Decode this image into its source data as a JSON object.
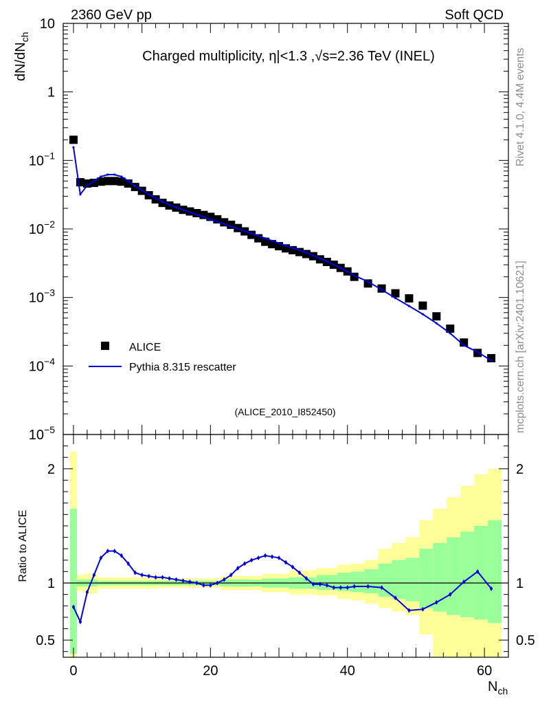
{
  "header": {
    "left": "2360 GeV pp",
    "right": "Soft QCD"
  },
  "side_labels": {
    "top": "Rivet 4.1.0,  4.4M events",
    "bottom": "mcplots.cern.ch [arXiv:2401.10621]"
  },
  "colors": {
    "mc": "#0000dd",
    "band_inner": "#99ff99",
    "band_outer": "#ffff99",
    "data": "#000000"
  },
  "chart_data": [
    {
      "type": "scatter",
      "title": "Charged multiplicity, η|<1.3 ,√s=2.36 TeV (INEL)",
      "analysis_tag": "(ALICE_2010_I852450)",
      "ylabel": "dN/dN",
      "ylabel_sub": "ch",
      "yscale": "log",
      "xlim": [
        -1.5,
        63.5
      ],
      "ylim_exp": [
        -5,
        1
      ],
      "ytick_labels": [
        {
          "exp": 1,
          "text": "10"
        },
        {
          "exp": 0,
          "text": "1"
        },
        {
          "exp": -1,
          "text": "10",
          "sup": "−1"
        },
        {
          "exp": -2,
          "text": "10",
          "sup": "−2"
        },
        {
          "exp": -3,
          "text": "10",
          "sup": "−3"
        },
        {
          "exp": -4,
          "text": "10",
          "sup": "−4"
        },
        {
          "exp": -5,
          "text": "10",
          "sup": "−5"
        }
      ],
      "legend": {
        "placement": "bottom-left",
        "data_label": "ALICE",
        "mc_label": "Pythia 8.315 rescatter"
      },
      "x": [
        0,
        1,
        2,
        3,
        4,
        5,
        6,
        7,
        8,
        9,
        10,
        11,
        12,
        13,
        14,
        15,
        16,
        17,
        18,
        19,
        20,
        21,
        22,
        23,
        24,
        25,
        26,
        27,
        28,
        29,
        30,
        31,
        32,
        33,
        34,
        35,
        36,
        37,
        38,
        39,
        40,
        41,
        43,
        45,
        47,
        49,
        51,
        53,
        55,
        57,
        59,
        61
      ],
      "data_y": [
        0.2,
        0.048,
        0.046,
        0.047,
        0.049,
        0.05,
        0.05,
        0.049,
        0.046,
        0.041,
        0.036,
        0.031,
        0.027,
        0.024,
        0.022,
        0.0205,
        0.019,
        0.018,
        0.017,
        0.016,
        0.015,
        0.0138,
        0.0125,
        0.0115,
        0.0103,
        0.0092,
        0.0082,
        0.0073,
        0.0065,
        0.006,
        0.0056,
        0.0052,
        0.0049,
        0.0046,
        0.0043,
        0.004,
        0.0036,
        0.0033,
        0.003,
        0.0027,
        0.0024,
        0.002,
        0.0016,
        0.00135,
        0.00115,
        0.00097,
        0.00076,
        0.00053,
        0.00035,
        0.00022,
        0.000155,
        0.00013
      ],
      "mc_y": [
        0.155,
        0.032,
        0.043,
        0.05,
        0.058,
        0.062,
        0.062,
        0.058,
        0.05,
        0.042,
        0.037,
        0.032,
        0.028,
        0.025,
        0.0225,
        0.0207,
        0.019,
        0.0175,
        0.0162,
        0.015,
        0.0138,
        0.0128,
        0.0118,
        0.0109,
        0.0101,
        0.0093,
        0.0086,
        0.0079,
        0.0073,
        0.0067,
        0.0062,
        0.0057,
        0.0053,
        0.0049,
        0.0045,
        0.0041,
        0.0037,
        0.0034,
        0.003,
        0.0027,
        0.0024,
        0.0021,
        0.0017,
        0.0013,
        0.00098,
        0.00075,
        0.00057,
        0.00042,
        0.0003,
        0.0002,
        0.00016,
        0.00012
      ]
    },
    {
      "type": "line",
      "ylabel": "Ratio to ALICE",
      "xlabel": "N",
      "xlabel_sub": "ch",
      "xlim": [
        -1.5,
        63.5
      ],
      "ylim": [
        0.35,
        2.3
      ],
      "ytick_labels": [
        {
          "v": 0.5,
          "text": "0.5"
        },
        {
          "v": 1,
          "text": "1"
        },
        {
          "v": 2,
          "text": "2"
        }
      ],
      "xtick_labels": [
        {
          "v": 0,
          "text": "0"
        },
        {
          "v": 20,
          "text": "20"
        },
        {
          "v": 40,
          "text": "40"
        },
        {
          "v": 60,
          "text": "60"
        }
      ],
      "reference_line": 1,
      "ratio_y": [
        0.79,
        0.66,
        0.92,
        1.07,
        1.22,
        1.28,
        1.28,
        1.24,
        1.17,
        1.09,
        1.07,
        1.06,
        1.05,
        1.05,
        1.04,
        1.03,
        1.02,
        1.01,
        1.0,
        0.98,
        0.98,
        1.0,
        1.03,
        1.07,
        1.13,
        1.17,
        1.2,
        1.22,
        1.24,
        1.23,
        1.22,
        1.18,
        1.14,
        1.09,
        1.04,
        0.99,
        0.99,
        0.98,
        0.96,
        0.96,
        0.96,
        0.97,
        0.97,
        0.96,
        0.87,
        0.76,
        0.77,
        0.83,
        0.9,
        1.01,
        1.1,
        0.95
      ],
      "band_bins": [
        {
          "x0": -0.5,
          "x1": 0.5,
          "in": [
            0.38,
            1.65
          ],
          "out": [
            0.32,
            2.15
          ]
        },
        {
          "x0": 0.5,
          "x1": 1.5,
          "in": [
            0.97,
            1.03
          ],
          "out": [
            0.93,
            1.07
          ]
        },
        {
          "x0": 1.5,
          "x1": 3.5,
          "in": [
            0.97,
            1.03
          ],
          "out": [
            0.91,
            1.08
          ]
        },
        {
          "x0": 3.5,
          "x1": 12.5,
          "in": [
            0.98,
            1.02
          ],
          "out": [
            0.95,
            1.05
          ]
        },
        {
          "x0": 12.5,
          "x1": 21.5,
          "in": [
            0.98,
            1.02
          ],
          "out": [
            0.96,
            1.04
          ]
        },
        {
          "x0": 21.5,
          "x1": 27.5,
          "in": [
            0.97,
            1.03
          ],
          "out": [
            0.94,
            1.06
          ]
        },
        {
          "x0": 27.5,
          "x1": 31.5,
          "in": [
            0.96,
            1.04
          ],
          "out": [
            0.92,
            1.08
          ]
        },
        {
          "x0": 31.5,
          "x1": 35.5,
          "in": [
            0.95,
            1.05
          ],
          "out": [
            0.9,
            1.11
          ]
        },
        {
          "x0": 35.5,
          "x1": 38.5,
          "in": [
            0.94,
            1.07
          ],
          "out": [
            0.89,
            1.13
          ]
        },
        {
          "x0": 38.5,
          "x1": 40.5,
          "in": [
            0.93,
            1.09
          ],
          "out": [
            0.86,
            1.16
          ]
        },
        {
          "x0": 40.5,
          "x1": 42.5,
          "in": [
            0.92,
            1.1
          ],
          "out": [
            0.85,
            1.17
          ]
        },
        {
          "x0": 42.5,
          "x1": 44.5,
          "in": [
            0.91,
            1.12
          ],
          "out": [
            0.82,
            1.2
          ]
        },
        {
          "x0": 44.5,
          "x1": 46.5,
          "in": [
            0.88,
            1.17
          ],
          "out": [
            0.78,
            1.3
          ]
        },
        {
          "x0": 46.5,
          "x1": 48.5,
          "in": [
            0.86,
            1.2
          ],
          "out": [
            0.75,
            1.35
          ]
        },
        {
          "x0": 48.5,
          "x1": 50.5,
          "in": [
            0.84,
            1.22
          ],
          "out": [
            0.72,
            1.4
          ]
        },
        {
          "x0": 50.5,
          "x1": 52.5,
          "in": [
            0.78,
            1.3
          ],
          "out": [
            0.55,
            1.55
          ]
        },
        {
          "x0": 52.5,
          "x1": 54.5,
          "in": [
            0.75,
            1.35
          ],
          "out": [
            0.35,
            1.65
          ]
        },
        {
          "x0": 54.5,
          "x1": 56.5,
          "in": [
            0.72,
            1.4
          ],
          "out": [
            0.35,
            1.75
          ]
        },
        {
          "x0": 56.5,
          "x1": 58.5,
          "in": [
            0.7,
            1.45
          ],
          "out": [
            0.35,
            1.85
          ]
        },
        {
          "x0": 58.5,
          "x1": 60.5,
          "in": [
            0.68,
            1.5
          ],
          "out": [
            0.35,
            1.95
          ]
        },
        {
          "x0": 60.5,
          "x1": 62.5,
          "in": [
            0.65,
            1.55
          ],
          "out": [
            0.35,
            2.0
          ]
        }
      ]
    }
  ]
}
